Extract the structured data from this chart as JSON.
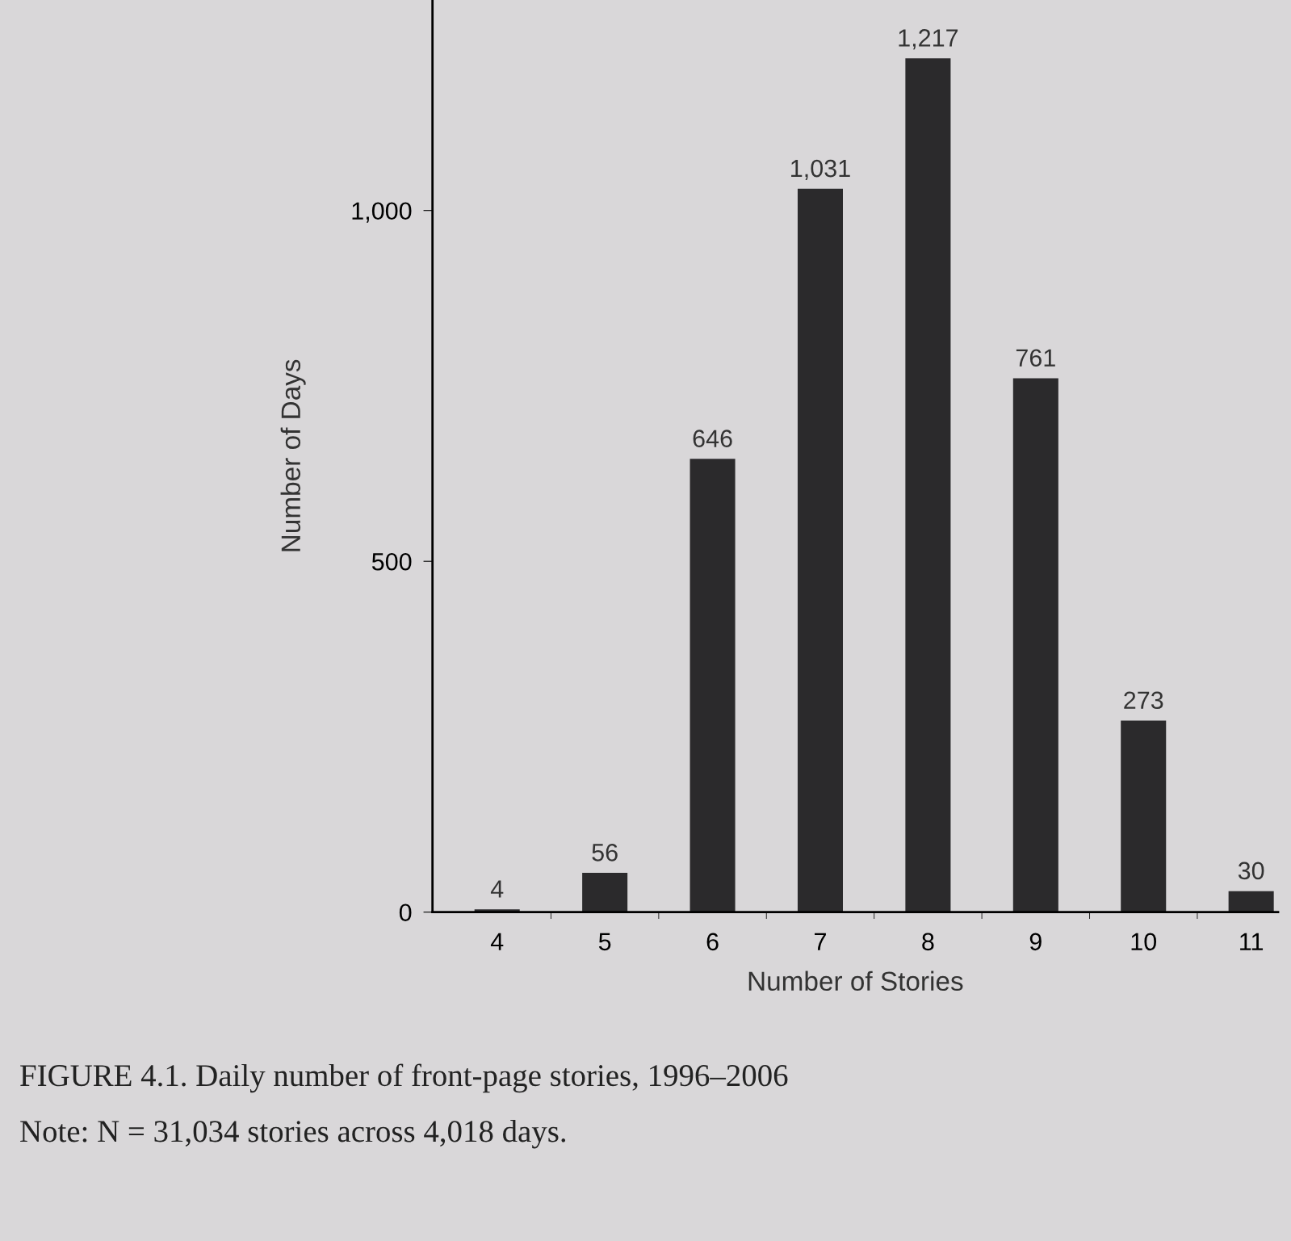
{
  "chart_data": {
    "type": "bar",
    "xlabel": "Number of Stories",
    "ylabel": "Number of Days",
    "categories": [
      "4",
      "5",
      "6",
      "7",
      "8",
      "9",
      "10",
      "11"
    ],
    "values": [
      4,
      56,
      646,
      1031,
      1217,
      761,
      273,
      30
    ],
    "value_labels": [
      "4",
      "56",
      "646",
      "1,031",
      "1,217",
      "761",
      "273",
      "30"
    ],
    "color": "#2b2a2c",
    "ylim": [
      0,
      1300
    ],
    "yticks": [
      0,
      500,
      {
        "value": 1000,
        "label": "1,000"
      }
    ],
    "grid": false,
    "legend": false,
    "annotations": [
      "FIGURE 4.1. Daily number of front-page stories, 1996–2006",
      "Note: N = 31,034 stories across 4,018 days."
    ]
  }
}
